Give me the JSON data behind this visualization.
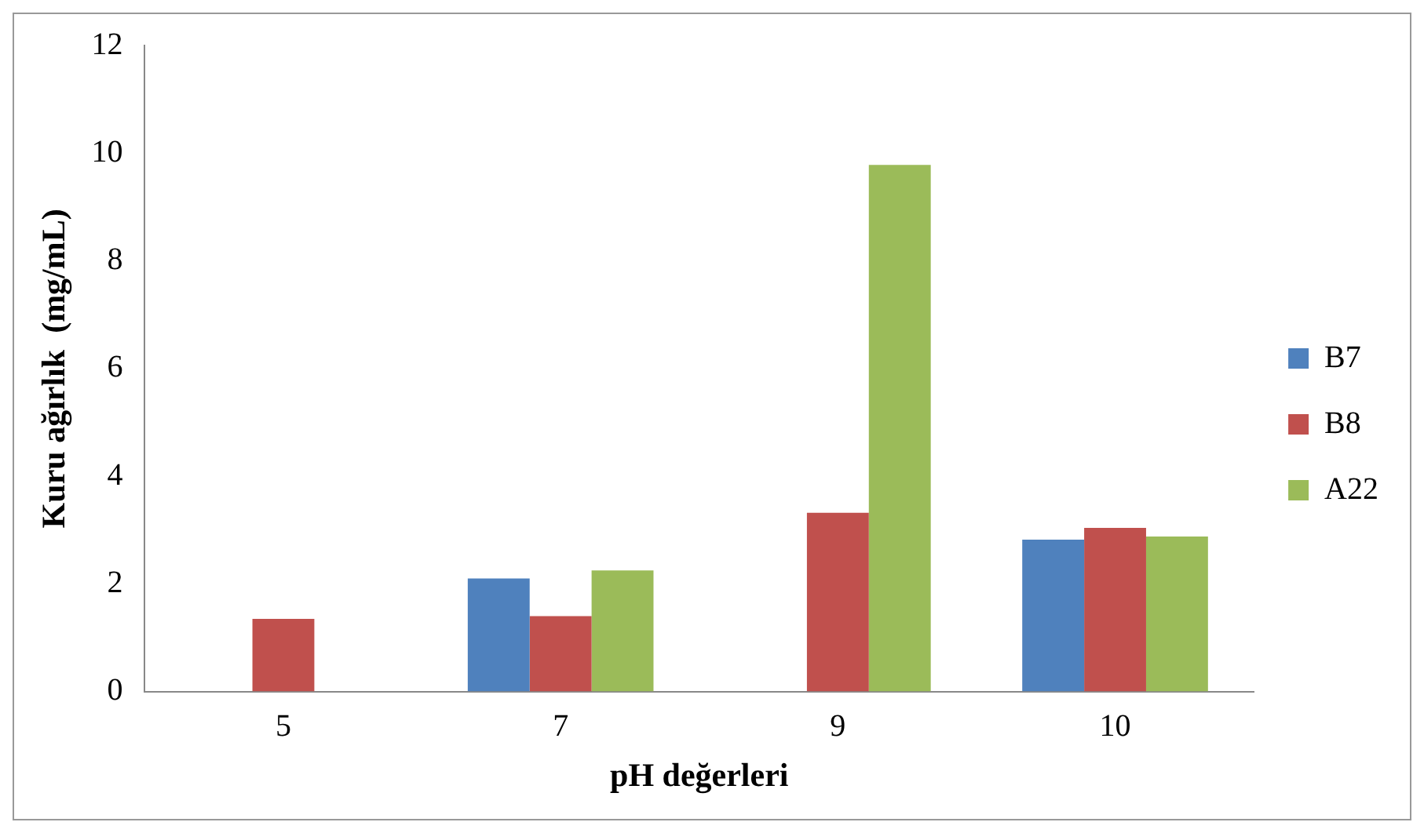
{
  "chart_data": {
    "type": "bar",
    "xlabel": "pH değerleri",
    "ylabel": "Kuru ağırlık  (mg/mL)",
    "categories": [
      "5",
      "7",
      "9",
      "10"
    ],
    "series": [
      {
        "name": "B7",
        "color": "#4f81bd",
        "values": [
          null,
          2.1,
          null,
          2.82
        ]
      },
      {
        "name": "B8",
        "color": "#c0504d",
        "values": [
          1.35,
          1.4,
          3.32,
          3.04
        ]
      },
      {
        "name": "A22",
        "color": "#9bbb59",
        "values": [
          null,
          2.25,
          9.78,
          2.88
        ]
      }
    ],
    "ylim": [
      0,
      12
    ],
    "yticks": [
      0,
      2,
      4,
      6,
      8,
      10,
      12
    ],
    "grid": false,
    "legend": "right"
  }
}
